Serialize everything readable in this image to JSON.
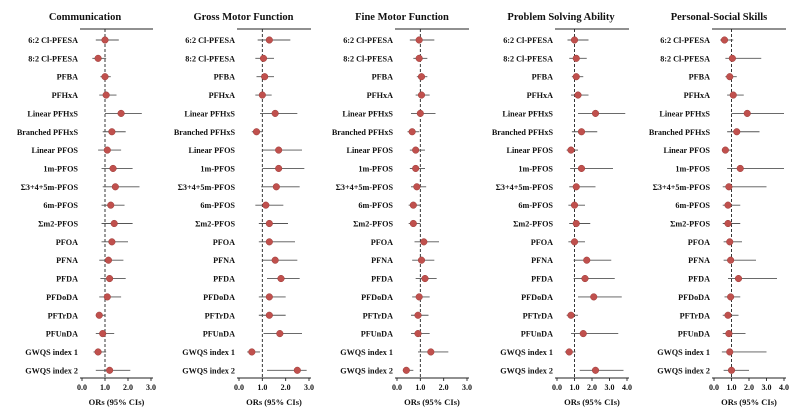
{
  "chart_data": {
    "type": "forest",
    "categories": [
      "6:2 Cl-PFESA",
      "8:2 Cl-PFESA",
      "PFBA",
      "PFHxA",
      "Linear PFHxS",
      "Branched PFHxS",
      "Linear PFOS",
      "1m-PFOS",
      "Σ3+4+5m-PFOS",
      "6m-PFOS",
      "Σm2-PFOS",
      "PFOA",
      "PFNA",
      "PFDA",
      "PFDoDA",
      "PFTrDA",
      "PFUnDA",
      "GWQS index 1",
      "GWQS index 2"
    ],
    "xlabel": "ORs (95% CIs)",
    "reference_line": 1.0,
    "marker_color": "#c0504d",
    "panels": [
      {
        "title": "Communication",
        "xlim": [
          0,
          3
        ],
        "ticks": [
          "0.0",
          "1.0",
          "2.0",
          "3.0"
        ],
        "or": [
          1.0,
          0.7,
          1.0,
          1.05,
          1.7,
          1.3,
          1.1,
          1.35,
          1.45,
          1.25,
          1.4,
          1.3,
          1.15,
          1.2,
          1.1,
          0.75,
          0.9,
          0.7,
          1.2
        ],
        "lower": [
          0.6,
          0.45,
          0.8,
          0.75,
          1.0,
          0.9,
          0.7,
          0.85,
          0.9,
          0.85,
          0.85,
          0.85,
          0.75,
          0.8,
          0.75,
          0.6,
          0.6,
          0.5,
          0.6
        ],
        "upper": [
          1.6,
          1.05,
          1.25,
          1.5,
          2.6,
          1.9,
          1.7,
          2.2,
          2.5,
          1.85,
          2.2,
          2.0,
          1.8,
          1.9,
          1.7,
          1.0,
          1.4,
          1.05,
          2.1
        ]
      },
      {
        "title": "Gross Motor Function",
        "xlim": [
          0,
          3
        ],
        "ticks": [
          "0.0",
          "1.0",
          "2.0",
          "3.0"
        ],
        "or": [
          1.3,
          1.05,
          1.1,
          1.0,
          1.55,
          0.75,
          1.7,
          1.7,
          1.6,
          1.15,
          1.3,
          1.3,
          1.55,
          1.8,
          1.3,
          1.3,
          1.75,
          0.55,
          2.5
        ],
        "lower": [
          0.8,
          0.7,
          0.75,
          0.7,
          0.9,
          0.55,
          1.0,
          1.0,
          0.95,
          0.7,
          0.85,
          0.85,
          1.0,
          1.2,
          0.85,
          0.85,
          1.05,
          0.35,
          1.2
        ],
        "upper": [
          2.2,
          1.5,
          1.5,
          1.4,
          2.5,
          1.0,
          2.7,
          2.8,
          2.6,
          1.9,
          2.1,
          2.4,
          2.5,
          2.6,
          2.0,
          2.0,
          2.7,
          0.9,
          2.9
        ]
      },
      {
        "title": "Fine Motor Function",
        "xlim": [
          0,
          3
        ],
        "ticks": [
          "0.0",
          "1.0",
          "2.0",
          "3.0"
        ],
        "or": [
          0.95,
          0.95,
          1.05,
          1.05,
          1.0,
          0.65,
          0.8,
          0.8,
          0.85,
          0.7,
          0.7,
          1.15,
          1.05,
          1.2,
          0.95,
          0.9,
          0.9,
          1.45,
          0.4
        ],
        "lower": [
          0.55,
          0.7,
          0.85,
          0.8,
          0.6,
          0.45,
          0.55,
          0.55,
          0.6,
          0.5,
          0.5,
          0.75,
          0.65,
          0.8,
          0.65,
          0.6,
          0.6,
          0.9,
          0.25
        ],
        "upper": [
          1.6,
          1.3,
          1.3,
          1.4,
          1.65,
          0.95,
          1.2,
          1.2,
          1.25,
          1.0,
          1.0,
          1.8,
          1.6,
          1.7,
          1.4,
          1.35,
          1.4,
          2.2,
          0.7
        ]
      },
      {
        "title": "Problem Solving Ability",
        "xlim": [
          0,
          4
        ],
        "ticks": [
          "0.0",
          "1.0",
          "2.0",
          "3.0",
          "4.0"
        ],
        "or": [
          1.0,
          1.1,
          1.1,
          1.2,
          2.2,
          1.4,
          0.8,
          1.4,
          1.1,
          1.0,
          1.1,
          1.0,
          1.7,
          1.6,
          2.1,
          0.8,
          1.5,
          0.7,
          2.2
        ],
        "lower": [
          0.6,
          0.7,
          0.85,
          0.8,
          1.2,
          0.85,
          0.55,
          0.75,
          0.7,
          0.65,
          0.7,
          0.65,
          0.95,
          0.95,
          1.2,
          0.55,
          0.8,
          0.45,
          1.3
        ],
        "upper": [
          1.8,
          1.7,
          1.5,
          1.8,
          3.9,
          2.3,
          1.2,
          3.2,
          2.2,
          1.6,
          1.9,
          1.6,
          3.1,
          3.3,
          3.7,
          1.2,
          3.5,
          1.05,
          3.8
        ]
      },
      {
        "title": "Personal-Social Skills",
        "xlim": [
          0,
          4
        ],
        "ticks": [
          "0.0",
          "1.0",
          "2.0",
          "3.0",
          "4.0"
        ],
        "or": [
          0.6,
          1.05,
          0.9,
          1.1,
          1.9,
          1.3,
          0.65,
          1.5,
          0.85,
          0.8,
          0.8,
          0.9,
          0.95,
          1.4,
          0.95,
          0.8,
          0.85,
          0.9,
          1.0
        ],
        "lower": [
          0.35,
          0.65,
          0.65,
          0.75,
          1.0,
          0.75,
          0.45,
          0.75,
          0.5,
          0.5,
          0.5,
          0.55,
          0.55,
          0.8,
          0.6,
          0.5,
          0.5,
          0.45,
          0.55
        ],
        "upper": [
          1.1,
          2.7,
          1.3,
          1.7,
          4.0,
          2.6,
          1.0,
          4.0,
          3.0,
          1.5,
          1.5,
          1.6,
          2.4,
          3.6,
          1.5,
          1.4,
          1.8,
          3.0,
          2.0
        ]
      }
    ]
  }
}
